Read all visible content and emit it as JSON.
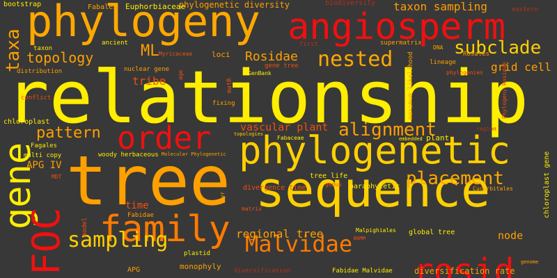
{
  "palette": {
    "background": "#383838",
    "yellow": "#ffee00",
    "gold": "#ffc000",
    "amber": "#ffa000",
    "orange": "#ff7a00",
    "red_orange": "#f05010",
    "red": "#f01010",
    "dim_red": "#b83018"
  },
  "words": [
    {
      "text": "relationship",
      "color": "#ffee00",
      "weight": "largest",
      "orientation": "horizontal"
    },
    {
      "text": "tree",
      "color": "#ffa000",
      "weight": "very large",
      "orientation": "horizontal"
    },
    {
      "text": "sequence",
      "color": "#ffd000",
      "weight": "very large",
      "orientation": "horizontal"
    },
    {
      "text": "phylogeny",
      "color": "#ffa800",
      "weight": "large",
      "orientation": "horizontal"
    },
    {
      "text": "angiosperm",
      "color": "#f01010",
      "weight": "large",
      "orientation": "horizontal"
    },
    {
      "text": "phylogenetic",
      "color": "#ffd000",
      "weight": "large",
      "orientation": "horizontal"
    },
    {
      "text": "family",
      "color": "#ff7a00",
      "weight": "large",
      "orientation": "horizontal"
    },
    {
      "text": "rosid",
      "color": "#f01010",
      "weight": "large",
      "orientation": "horizontal"
    },
    {
      "text": "gene",
      "color": "#ffee00",
      "weight": "large",
      "orientation": "vertical"
    },
    {
      "text": "FOC",
      "color": "#f01010",
      "weight": "large",
      "orientation": "vertical"
    },
    {
      "text": "order",
      "color": "#f01010",
      "weight": "medium",
      "orientation": "horizontal"
    },
    {
      "text": "Malvidae",
      "color": "#ff7a00",
      "weight": "medium",
      "orientation": "horizontal"
    },
    {
      "text": "sampling",
      "color": "#ffd000",
      "weight": "medium",
      "orientation": "horizontal"
    },
    {
      "text": "nested",
      "color": "#ffa800",
      "weight": "medium",
      "orientation": "horizontal"
    },
    {
      "text": "alignment",
      "color": "#ffa000",
      "weight": "medium",
      "orientation": "horizontal"
    },
    {
      "text": "placement",
      "color": "#ffa800",
      "weight": "medium",
      "orientation": "horizontal"
    },
    {
      "text": "subclade",
      "color": "#ffd000",
      "weight": "medium",
      "orientation": "horizontal"
    },
    {
      "text": "taxa",
      "color": "#ffa000",
      "weight": "medium",
      "orientation": "vertical"
    },
    {
      "text": "pattern",
      "color": "#ffa000",
      "weight": "small",
      "orientation": "horizontal"
    },
    {
      "text": "topology",
      "color": "#ffa000",
      "weight": "small",
      "orientation": "horizontal"
    },
    {
      "text": "taxon sampling",
      "color": "#ffa000",
      "weight": "small",
      "orientation": "horizontal"
    },
    {
      "text": "ML",
      "color": "#ffa000",
      "weight": "small",
      "orientation": "horizontal"
    },
    {
      "text": "Rosidae",
      "color": "#ffa000",
      "weight": "small",
      "orientation": "horizontal"
    },
    {
      "text": "grid cell",
      "color": "#ffa000",
      "weight": "small",
      "orientation": "horizontal"
    },
    {
      "text": "vascular plant",
      "color": "#f05010",
      "weight": "small",
      "orientation": "horizontal"
    },
    {
      "text": "tribe",
      "color": "#f05010",
      "weight": "small",
      "orientation": "horizontal"
    },
    {
      "text": "regional tree",
      "color": "#ffa000",
      "weight": "small",
      "orientation": "horizontal"
    },
    {
      "text": "node",
      "color": "#ffa000",
      "weight": "small",
      "orientation": "horizontal"
    },
    {
      "text": "APG IV",
      "color": "#ffa000",
      "weight": "small",
      "orientation": "horizontal"
    },
    {
      "text": "time",
      "color": "#f05010",
      "weight": "small",
      "orientation": "horizontal"
    },
    {
      "text": "phylogenetic diversity",
      "color": "#ffa000",
      "weight": "tiny",
      "orientation": "horizontal"
    },
    {
      "text": "bootstrap",
      "color": "#ffee00",
      "weight": "tiny",
      "orientation": "horizontal"
    },
    {
      "text": "Fabales",
      "color": "#ffa000",
      "weight": "tiny",
      "orientation": "horizontal"
    },
    {
      "text": "Euphorbiaceae",
      "color": "#ffee00",
      "weight": "tiny",
      "orientation": "horizontal"
    },
    {
      "text": "biodiversity",
      "color": "#b83018",
      "weight": "tiny",
      "orientation": "horizontal"
    },
    {
      "text": "eastern",
      "color": "#b83018",
      "weight": "tiny",
      "orientation": "horizontal"
    },
    {
      "text": "taxon",
      "color": "#ffee00",
      "weight": "tiny",
      "orientation": "horizontal"
    },
    {
      "text": "ancient",
      "color": "#ffee00",
      "weight": "tiny",
      "orientation": "horizontal"
    },
    {
      "text": "loci",
      "color": "#ffa000",
      "weight": "tiny",
      "orientation": "horizontal"
    },
    {
      "text": "Myricaceae",
      "color": "#f05010",
      "weight": "tiny",
      "orientation": "horizontal"
    },
    {
      "text": "first",
      "color": "#b83018",
      "weight": "tiny",
      "orientation": "horizontal"
    },
    {
      "text": "supermatrix",
      "color": "#ffa000",
      "weight": "tiny",
      "orientation": "horizontal"
    },
    {
      "text": "DNA",
      "color": "#ffa000",
      "weight": "tiny",
      "orientation": "horizontal"
    },
    {
      "text": "Rosales",
      "color": "#ffa000",
      "weight": "tiny",
      "orientation": "horizontal"
    },
    {
      "text": "lineage",
      "color": "#ffa000",
      "weight": "tiny",
      "orientation": "horizontal"
    },
    {
      "text": "phylogenies",
      "color": "#f05010",
      "weight": "tiny",
      "orientation": "horizontal"
    },
    {
      "text": "distribution",
      "color": "#ffa000",
      "weight": "tiny",
      "orientation": "horizontal"
    },
    {
      "text": "nuclear gene",
      "color": "#ffa000",
      "weight": "tiny",
      "orientation": "horizontal"
    },
    {
      "text": "age",
      "color": "#f05010",
      "weight": "tiny",
      "orientation": "vertical"
    },
    {
      "text": "gene tree",
      "color": "#f05010",
      "weight": "tiny",
      "orientation": "horizontal"
    },
    {
      "text": "GenBank",
      "color": "#ffee00",
      "weight": "tiny",
      "orientation": "horizontal"
    },
    {
      "text": "matR",
      "color": "#f05010",
      "weight": "tiny",
      "orientation": "vertical"
    },
    {
      "text": "maximum likelihood",
      "color": "#ffa000",
      "weight": "tiny",
      "orientation": "vertical"
    },
    {
      "text": "Phylogeny Rosidae",
      "color": "#f05010",
      "weight": "tiny",
      "orientation": "vertical"
    },
    {
      "text": "conflict",
      "color": "#f05010",
      "weight": "tiny",
      "orientation": "horizontal"
    },
    {
      "text": "fixing",
      "color": "#ffa000",
      "weight": "tiny",
      "orientation": "horizontal"
    },
    {
      "text": "chloroplast",
      "color": "#ffee00",
      "weight": "tiny",
      "orientation": "horizontal"
    },
    {
      "text": "topologies",
      "color": "#ffd000",
      "weight": "tiny",
      "orientation": "horizontal"
    },
    {
      "text": "region",
      "color": "#b83018",
      "weight": "tiny",
      "orientation": "horizontal"
    },
    {
      "text": "Fagales",
      "color": "#ffee00",
      "weight": "tiny",
      "orientation": "horizontal"
    },
    {
      "text": "Fabaceae",
      "color": "#ffee00",
      "weight": "tiny",
      "orientation": "horizontal"
    },
    {
      "text": "embedded",
      "color": "#ffee00",
      "weight": "tiny",
      "orientation": "horizontal"
    },
    {
      "text": "plant",
      "color": "#ffee00",
      "weight": "tiny",
      "orientation": "horizontal"
    },
    {
      "text": "multi copy",
      "color": "#ffee00",
      "weight": "tiny",
      "orientation": "horizontal"
    },
    {
      "text": "woody herbaceous",
      "color": "#ffee00",
      "weight": "tiny",
      "orientation": "horizontal"
    },
    {
      "text": "Molecular Phylogenetic",
      "color": "#ffa000",
      "weight": "tiny",
      "orientation": "horizontal"
    },
    {
      "text": "divergence time",
      "color": "#f05010",
      "weight": "tiny",
      "orientation": "horizontal"
    },
    {
      "text": "tree life",
      "color": "#ffee00",
      "weight": "tiny",
      "orientation": "horizontal"
    },
    {
      "text": "genus",
      "color": "#f05010",
      "weight": "tiny",
      "orientation": "horizontal"
    },
    {
      "text": "paraphyletic",
      "color": "#ffee00",
      "weight": "tiny",
      "orientation": "horizontal"
    },
    {
      "text": "Cucurbitales",
      "color": "#ffa000",
      "weight": "tiny",
      "orientation": "horizontal"
    },
    {
      "text": "chloroplast gene",
      "color": "#ffee00",
      "weight": "tiny",
      "orientation": "vertical"
    },
    {
      "text": "MDT",
      "color": "#f05010",
      "weight": "tiny",
      "orientation": "horizontal"
    },
    {
      "text": "Fabidae",
      "color": "#ffa000",
      "weight": "tiny",
      "orientation": "horizontal"
    },
    {
      "text": "Myr",
      "color": "#ffa000",
      "weight": "tiny",
      "orientation": "vertical"
    },
    {
      "text": "matrix",
      "color": "#f05010",
      "weight": "tiny",
      "orientation": "horizontal"
    },
    {
      "text": "model",
      "color": "#f05010",
      "weight": "tiny",
      "orientation": "vertical"
    },
    {
      "text": "Malpighiales",
      "color": "#ffee00",
      "weight": "tiny",
      "orientation": "horizontal"
    },
    {
      "text": "global tree",
      "color": "#ffee00",
      "weight": "tiny",
      "orientation": "horizontal"
    },
    {
      "text": "BAMM",
      "color": "#f05010",
      "weight": "tiny",
      "orientation": "horizontal"
    },
    {
      "text": "genome",
      "color": "#ffa000",
      "weight": "tiny",
      "orientation": "horizontal"
    },
    {
      "text": "plastid",
      "color": "#ffee00",
      "weight": "tiny",
      "orientation": "horizontal"
    },
    {
      "text": "monophyly",
      "color": "#ffa000",
      "weight": "tiny",
      "orientation": "horizontal"
    },
    {
      "text": "APG",
      "color": "#ffa000",
      "weight": "tiny",
      "orientation": "horizontal"
    },
    {
      "text": "diversification",
      "color": "#b83018",
      "weight": "tiny",
      "orientation": "horizontal"
    },
    {
      "text": "Fabidae Malvidae",
      "color": "#ffee00",
      "weight": "tiny",
      "orientation": "horizontal"
    },
    {
      "text": "diversification rate",
      "color": "#ffa000",
      "weight": "tiny",
      "orientation": "horizontal"
    }
  ]
}
